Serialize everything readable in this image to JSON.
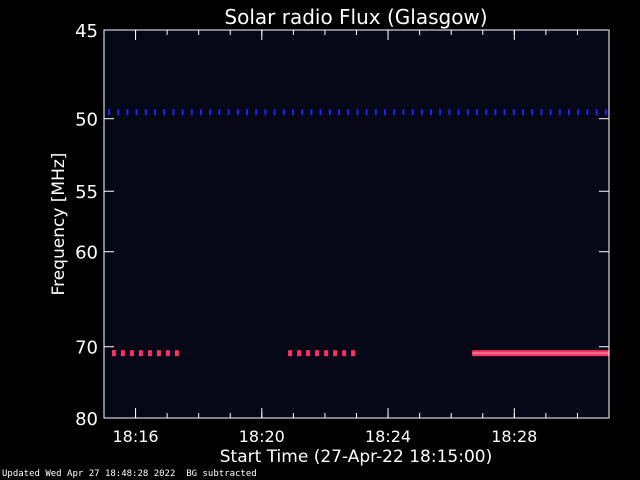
{
  "chart_data": {
    "type": "heatmap",
    "title": "Solar radio Flux (Glasgow)",
    "xlabel": "Start Time (27-Apr-22 18:15:00)",
    "ylabel": "Frequency [MHz]",
    "x_range_minutes": [
      18.25,
      18.516
    ],
    "xlim": [
      "18:15:00",
      "18:31:00"
    ],
    "ylim": [
      45,
      80
    ],
    "y_scale": "reciprocal",
    "x_ticks": [
      "18:16",
      "18:20",
      "18:24",
      "18:28"
    ],
    "y_ticks": [
      45,
      50,
      55,
      60,
      70,
      80
    ],
    "emission_bands": [
      {
        "freq_mhz": 49.6,
        "start": "18:15:00",
        "end": "18:31:00",
        "pattern": "dotted",
        "color": "#2020ff"
      },
      {
        "freq_mhz": 70.8,
        "start": "18:15:15",
        "end": "18:17:15",
        "pattern": "dashed",
        "color": "#ff3060"
      },
      {
        "freq_mhz": 70.8,
        "start": "18:20:50",
        "end": "18:22:55",
        "pattern": "dashed",
        "color": "#ff3060"
      },
      {
        "freq_mhz": 70.8,
        "start": "18:26:40",
        "end": "18:31:00",
        "pattern": "solid",
        "color": "#ff3060"
      }
    ],
    "background_color": "#060818",
    "grid": false,
    "legend": "none"
  },
  "footer": {
    "updated": "Updated Wed Apr 27 18:48:28 2022",
    "note": "BG subtracted"
  }
}
